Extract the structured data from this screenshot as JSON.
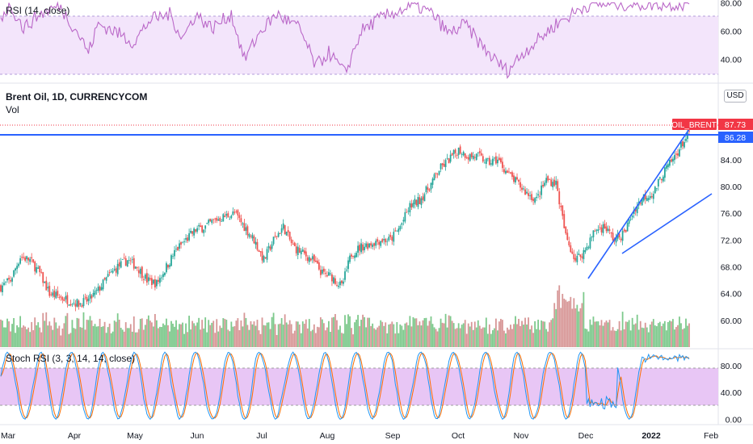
{
  "header": {
    "rsi_title": "RSI (14, close)",
    "symbol_title": "Brent Oil, 1D, CURRENCYCOM",
    "vol_label": "Vol",
    "stoch_title": "Stoch RSI (3, 3, 14, 14, close)",
    "currency_badge": "USD"
  },
  "price_tags": {
    "oil_brent_label": "OIL_BRENT",
    "oil_brent_value": "87.73",
    "line_value": "86.28"
  },
  "colors": {
    "up": "#26a69a",
    "down": "#ef5350",
    "up_volume": "#7dc98c",
    "down_volume": "#d79696",
    "rsi_line": "#ba68c8",
    "rsi_band": "#f3e5fb",
    "stoch_band": "#e8c6f5",
    "stoch_k": "#2196f3",
    "stoch_d": "#ff6d00",
    "trendline": "#2962ff",
    "tag_red": "#f23645",
    "tag_blue": "#2962ff"
  },
  "chart_data": [
    {
      "type": "line",
      "pane": "rsi",
      "title": "RSI (14, close)",
      "ylim": [
        25,
        82
      ],
      "y_ticks": [
        "40.00",
        "60.00",
        "80.00"
      ],
      "bands": [
        30,
        70
      ],
      "x_months": [
        "Mar",
        "Apr",
        "May",
        "Jun",
        "Jul",
        "Aug",
        "Sep",
        "Oct",
        "Nov",
        "Dec",
        "2022",
        "Feb"
      ],
      "values_note_keyframes": [
        [
          0,
          70
        ],
        [
          6,
          78
        ],
        [
          14,
          62
        ],
        [
          24,
          72
        ],
        [
          36,
          78
        ],
        [
          48,
          58
        ],
        [
          54,
          45
        ],
        [
          60,
          65
        ],
        [
          70,
          60
        ],
        [
          82,
          52
        ],
        [
          92,
          68
        ],
        [
          104,
          72
        ],
        [
          112,
          55
        ],
        [
          120,
          72
        ],
        [
          130,
          62
        ],
        [
          142,
          72
        ],
        [
          150,
          40
        ],
        [
          160,
          60
        ],
        [
          170,
          72
        ],
        [
          184,
          62
        ],
        [
          194,
          35
        ],
        [
          202,
          45
        ],
        [
          212,
          30
        ],
        [
          222,
          60
        ],
        [
          232,
          68
        ],
        [
          244,
          74
        ],
        [
          256,
          78
        ],
        [
          266,
          72
        ],
        [
          276,
          58
        ],
        [
          286,
          65
        ],
        [
          296,
          50
        ],
        [
          304,
          40
        ],
        [
          312,
          32
        ],
        [
          322,
          45
        ],
        [
          332,
          55
        ],
        [
          342,
          65
        ],
        [
          352,
          72
        ],
        [
          360,
          78
        ],
        [
          366,
          79
        ]
      ]
    },
    {
      "type": "candlestick",
      "pane": "price",
      "title": "Brent Oil, 1D, CURRENCYCOM",
      "ylim": [
        56,
        90
      ],
      "y_ticks": [
        "60.00",
        "64.00",
        "68.00",
        "72.00",
        "76.00",
        "80.00",
        "84.00"
      ],
      "last_price": 87.73,
      "horizontal_line": 86.28,
      "trendlines": [
        {
          "from": [
            "Dec",
            66.0
          ],
          "to": [
            "2022",
            86.5
          ]
        },
        {
          "from": [
            "Dec",
            69.3
          ],
          "to": [
            "Feb",
            78.0
          ]
        }
      ],
      "close_keyframes": [
        [
          0,
          65.0
        ],
        [
          6,
          66.0
        ],
        [
          12,
          69.5
        ],
        [
          18,
          69.0
        ],
        [
          24,
          67.0
        ],
        [
          30,
          64.0
        ],
        [
          36,
          63.5
        ],
        [
          42,
          63.0
        ],
        [
          48,
          62.5
        ],
        [
          54,
          63.0
        ],
        [
          60,
          64.5
        ],
        [
          66,
          66.5
        ],
        [
          72,
          68.0
        ],
        [
          78,
          69.0
        ],
        [
          84,
          68.0
        ],
        [
          90,
          66.0
        ],
        [
          96,
          65.5
        ],
        [
          102,
          68.0
        ],
        [
          108,
          70.5
        ],
        [
          114,
          72.0
        ],
        [
          120,
          73.5
        ],
        [
          126,
          74.0
        ],
        [
          132,
          75.0
        ],
        [
          138,
          75.5
        ],
        [
          144,
          76.0
        ],
        [
          150,
          74.0
        ],
        [
          156,
          72.0
        ],
        [
          162,
          69.0
        ],
        [
          168,
          72.0
        ],
        [
          174,
          74.0
        ],
        [
          180,
          71.0
        ],
        [
          186,
          70.0
        ],
        [
          192,
          69.0
        ],
        [
          198,
          67.0
        ],
        [
          204,
          66.5
        ],
        [
          210,
          65.0
        ],
        [
          216,
          70.0
        ],
        [
          222,
          71.0
        ],
        [
          228,
          71.5
        ],
        [
          234,
          72.0
        ],
        [
          240,
          72.0
        ],
        [
          246,
          74.0
        ],
        [
          252,
          77.0
        ],
        [
          258,
          78.0
        ],
        [
          264,
          80.0
        ],
        [
          270,
          82.5
        ],
        [
          276,
          84.0
        ],
        [
          282,
          85.5
        ],
        [
          288,
          84.5
        ],
        [
          294,
          84.5
        ],
        [
          300,
          83.5
        ],
        [
          306,
          84.0
        ],
        [
          312,
          82.0
        ],
        [
          318,
          80.5
        ],
        [
          324,
          79.0
        ],
        [
          330,
          78.0
        ],
        [
          336,
          81.0
        ],
        [
          342,
          80.5
        ],
        [
          348,
          72.5
        ],
        [
          354,
          69.0
        ],
        [
          360,
          70.5
        ],
        [
          366,
          73.5
        ],
        [
          372,
          74.0
        ],
        [
          378,
          72.0
        ],
        [
          384,
          73.0
        ],
        [
          390,
          76.5
        ],
        [
          396,
          78.5
        ],
        [
          402,
          79.0
        ],
        [
          408,
          82.0
        ],
        [
          414,
          84.0
        ],
        [
          420,
          86.5
        ],
        [
          424,
          87.73
        ]
      ]
    },
    {
      "type": "bar",
      "pane": "volume",
      "title": "Vol"
    },
    {
      "type": "line",
      "pane": "stoch_rsi",
      "title": "Stoch RSI (3, 3, 14, 14, close)",
      "ylim": [
        -8,
        105
      ],
      "y_ticks": [
        "0.00",
        "40.00",
        "80.00"
      ],
      "bands": [
        20,
        80
      ],
      "series": [
        {
          "values_note": "K line (blue), oscillating 0-100"
        },
        {
          "values_note": "D line (orange), smoothed K"
        }
      ]
    }
  ]
}
